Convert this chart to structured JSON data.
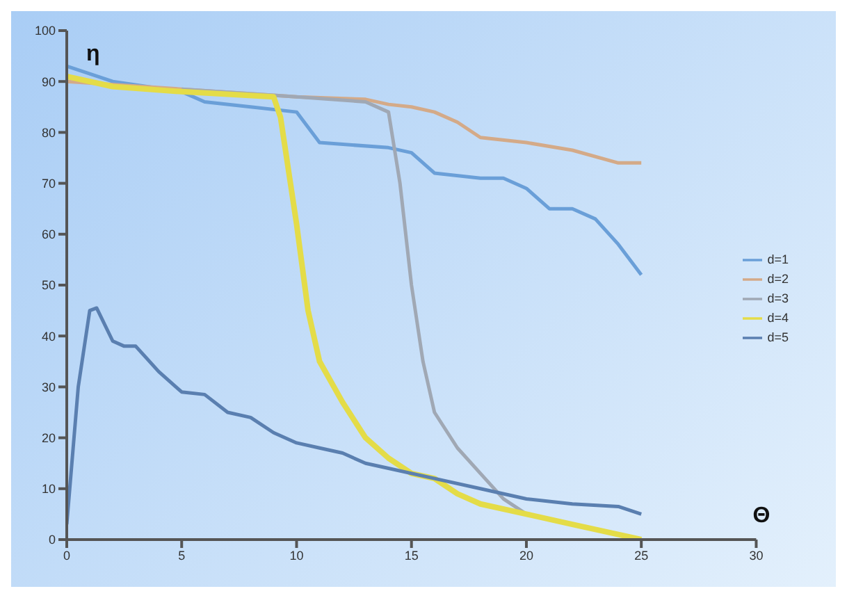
{
  "chart_data": {
    "type": "line",
    "xlabel": "Θ",
    "ylabel": "η",
    "xlim": [
      0,
      30
    ],
    "xticks": [
      0,
      5,
      10,
      15,
      20,
      25,
      30
    ],
    "ylim": [
      0,
      100
    ],
    "yticks": [
      0,
      10,
      20,
      30,
      40,
      50,
      60,
      70,
      80,
      90,
      100
    ],
    "grid": false,
    "legend": "right",
    "marker": "none",
    "line_style": "solid",
    "series": [
      {
        "name": "d=1",
        "color": "#6a9fd8",
        "x": [
          0,
          2,
          5,
          6,
          8,
          10,
          11,
          14,
          15,
          16,
          18,
          19,
          20,
          21,
          22,
          23,
          24,
          25
        ],
        "values": [
          93,
          90,
          88,
          86,
          85,
          84,
          78,
          77,
          76,
          72,
          71,
          71,
          69,
          65,
          65,
          63,
          58,
          52
        ]
      },
      {
        "name": "d=2",
        "color": "#d4aa88",
        "x": [
          0,
          5,
          10,
          13,
          14,
          15,
          16,
          17,
          18,
          20,
          22,
          24,
          25
        ],
        "values": [
          90,
          88.5,
          87,
          86.5,
          85.5,
          85,
          84,
          82,
          79,
          78,
          76.5,
          74,
          74
        ]
      },
      {
        "name": "d=3",
        "color": "#a0a8b4",
        "x": [
          5,
          10,
          13,
          14,
          14.5,
          15,
          15.5,
          16,
          17,
          18,
          19,
          20
        ],
        "values": [
          88.5,
          87,
          86,
          84,
          70,
          50,
          35,
          25,
          18,
          13,
          8,
          5
        ]
      },
      {
        "name": "d=4",
        "color": "#e4dc48",
        "x": [
          0,
          2,
          5,
          9,
          9.3,
          10,
          10.5,
          11,
          12,
          13,
          14,
          15,
          16,
          17,
          18,
          20,
          22,
          24,
          25
        ],
        "values": [
          91,
          89,
          88,
          87,
          83,
          62,
          45,
          35,
          27,
          20,
          16,
          13,
          12,
          9,
          7,
          5,
          3,
          1,
          0
        ]
      },
      {
        "name": "d=5",
        "color": "#5a7fb0",
        "x": [
          0,
          0.5,
          1,
          1.3,
          2,
          2.5,
          3,
          4,
          5,
          6,
          7,
          8,
          9,
          10,
          11,
          12,
          13,
          14,
          16,
          18,
          20,
          22,
          24,
          25
        ],
        "values": [
          3,
          30,
          45,
          45.5,
          39,
          38,
          38,
          33,
          29,
          28.5,
          25,
          24,
          21,
          19,
          18,
          17,
          15,
          14,
          12,
          10,
          8,
          7,
          6.5,
          5
        ]
      }
    ]
  }
}
